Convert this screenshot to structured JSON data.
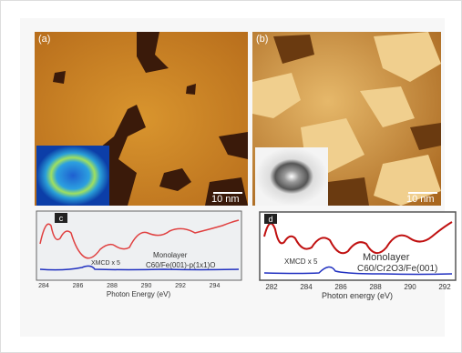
{
  "panels": {
    "a": {
      "label": "(a)",
      "scale": "10 nm"
    },
    "b": {
      "label": "(b)",
      "scale": "10 nm"
    },
    "c": {
      "label": "c",
      "title": "Monolayer",
      "formula": "C60/Fe(001)-p(1x1)O",
      "xmcd": "XMCD x 5",
      "ticks": [
        "284",
        "286",
        "288",
        "290",
        "292",
        "294"
      ],
      "xlabel": "Photon Energy (eV)"
    },
    "d": {
      "label": "d",
      "title": "Monolayer",
      "formula": "C60/Cr2O3/Fe(001)",
      "xmcd": "XMCD x 5",
      "ticks": [
        "282",
        "284",
        "286",
        "288",
        "290",
        "292"
      ],
      "xlabel": "Photon energy (eV)"
    }
  }
}
